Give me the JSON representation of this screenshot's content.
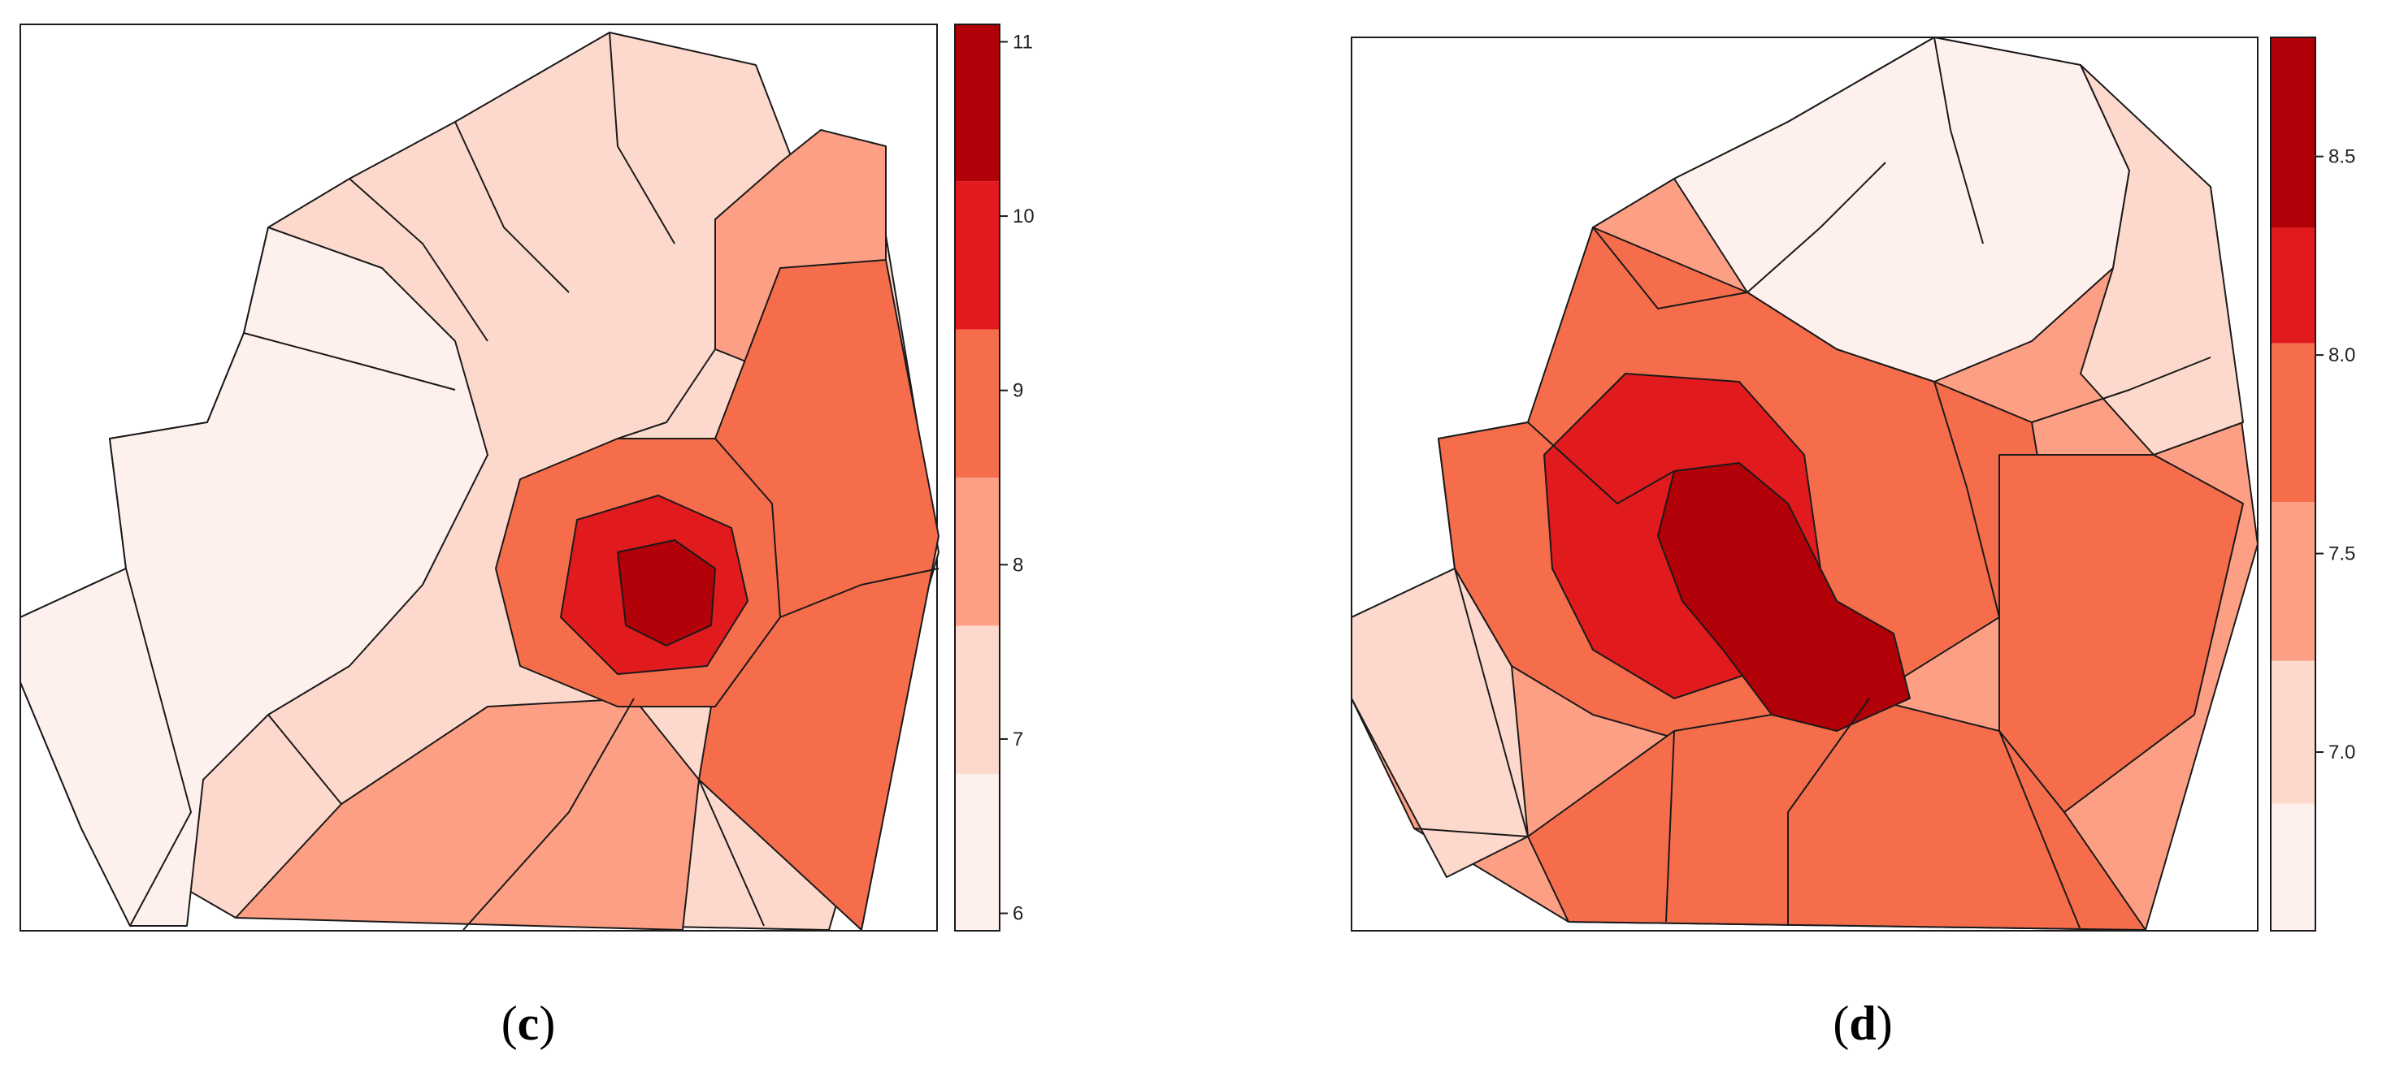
{
  "figure": {
    "panels": [
      {
        "label": "(c)",
        "label_prefix": "(",
        "label_letter": "c",
        "label_suffix": ")",
        "legend_ticks": [
          "6",
          "7",
          "8",
          "9",
          "10",
          "11"
        ],
        "legend_range": [
          5.9,
          11.1
        ],
        "legend_breaks": [
          5.9,
          6.8,
          7.65,
          8.5,
          9.35,
          10.2,
          11.1
        ],
        "legend_colors": [
          "#fef1ed",
          "#fcd9cc",
          "#fc9f84",
          "#f66d4c",
          "#e11a1d",
          "#b10008"
        ]
      },
      {
        "label": "(d)",
        "label_prefix": "(",
        "label_letter": "d",
        "label_suffix": ")",
        "legend_ticks": [
          "7.0",
          "7.5",
          "8.0",
          "8.5"
        ],
        "legend_range": [
          6.55,
          8.8
        ],
        "legend_breaks": [
          6.55,
          6.87,
          7.23,
          7.63,
          8.03,
          8.32,
          8.8
        ],
        "legend_colors": [
          "#fef1ed",
          "#fcd9cc",
          "#fc9f84",
          "#f66d4c",
          "#e11a1d",
          "#b10008"
        ]
      }
    ]
  },
  "map_colors": {
    "lightest": "#fef1ed",
    "light": "#fcd9cc",
    "medium": "#fc9f84",
    "strong": "#f66d4c",
    "intense": "#e11a1d",
    "darkest": "#b10008",
    "border": "#1a1a1a"
  }
}
